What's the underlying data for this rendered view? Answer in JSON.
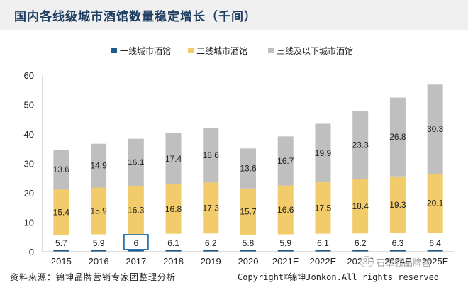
{
  "header": {
    "title": "国内各线级城市酒馆数量稳定增长（千间）"
  },
  "chart_data": {
    "type": "bar",
    "stacked": true,
    "categories": [
      "2015",
      "2016",
      "2017",
      "2018",
      "2019",
      "2020",
      "2021E",
      "2022E",
      "2023E",
      "2024E",
      "2025E"
    ],
    "series": [
      {
        "name": "一线城市酒馆",
        "color": "#1f5c8b",
        "values": [
          5.7,
          5.9,
          6,
          6.1,
          6.2,
          5.8,
          5.9,
          6.1,
          6.2,
          6.3,
          6.4
        ],
        "labels": [
          "5.7",
          "5.9",
          "6",
          "6.1",
          "6.2",
          "5.8",
          "5.9",
          "6.1",
          "6.2",
          "6.3",
          "6.4"
        ]
      },
      {
        "name": "二线城市酒馆",
        "color": "#f2cc6b",
        "values": [
          15.4,
          15.9,
          16.3,
          16.8,
          17.3,
          15.7,
          16.6,
          17.5,
          18.4,
          19.3,
          20.1
        ],
        "labels": [
          "15.4",
          "15.9",
          "16.3",
          "16.8",
          "17.3",
          "15.7",
          "16.6",
          "17.5",
          "18.4",
          "19.3",
          "20.1"
        ]
      },
      {
        "name": "三线及以下城市酒馆",
        "color": "#bfbfbf",
        "values": [
          13.6,
          14.9,
          16.1,
          17.4,
          18.6,
          13.6,
          16.7,
          19.9,
          23.3,
          26.8,
          30.3
        ],
        "labels": [
          "13.6",
          "14.9",
          "16.1",
          "17.4",
          "18.6",
          "13.6",
          "16.7",
          "19.9",
          "23.3",
          "26.8",
          "30.3"
        ]
      }
    ],
    "ylim": [
      0,
      60
    ],
    "yticks": [
      0,
      10,
      20,
      30,
      40,
      50,
      60
    ],
    "ytick_labels": [
      "0",
      "10",
      "20",
      "30",
      "40",
      "50",
      "60"
    ],
    "legend_position": "top",
    "grid": false
  },
  "footer": {
    "source": "资料来源：锦坤品牌营销专家团整理分析",
    "copyright": "Copyright©锦坤Jonkon.All rights reserved"
  },
  "watermark": {
    "text": "石章强品牌营"
  }
}
